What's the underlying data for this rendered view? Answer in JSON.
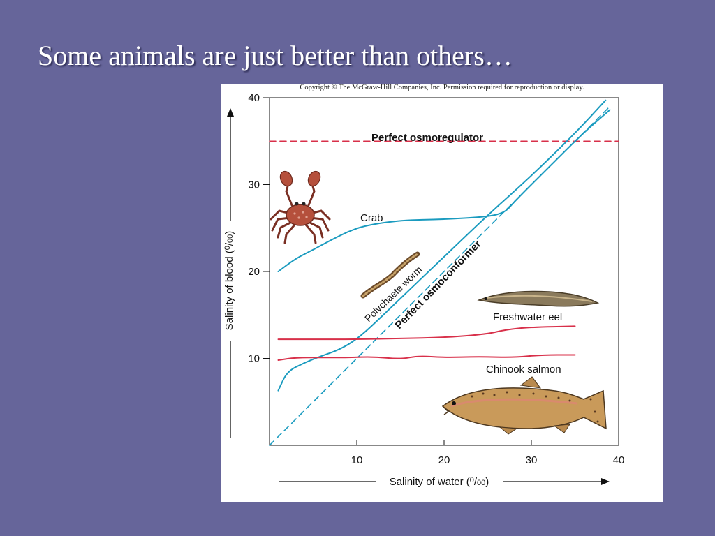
{
  "slide": {
    "title": "Some animals are just better than others…"
  },
  "figure": {
    "copyright": "Copyright © The McGraw-Hill Companies, Inc. Permission required for reproduction or display."
  },
  "chart_data": {
    "type": "line",
    "xlabel": "Salinity of water (0/00)",
    "ylabel": "Salinity of blood (0/00)",
    "xlim": [
      0,
      40
    ],
    "ylim": [
      0,
      40
    ],
    "xticks": [
      10,
      20,
      30,
      40
    ],
    "yticks": [
      10,
      20,
      30,
      40
    ],
    "grid": false,
    "series": [
      {
        "name": "Perfect osmoregulator",
        "style": "dashed",
        "color": "#d8304a",
        "x": [
          0,
          40
        ],
        "y": [
          35,
          35
        ]
      },
      {
        "name": "Perfect osmoconformer",
        "style": "dashed",
        "color": "#1a9bbf",
        "x": [
          0,
          39
        ],
        "y": [
          0,
          39
        ]
      },
      {
        "name": "Crab",
        "style": "solid",
        "color": "#1a9bbf",
        "x": [
          1,
          3,
          5,
          7,
          9,
          11,
          15,
          20,
          25,
          27,
          28,
          32,
          36,
          39
        ],
        "y": [
          20,
          21.5,
          22.5,
          23.6,
          24.6,
          25.3,
          25.9,
          26,
          26.3,
          26.8,
          28,
          32,
          36,
          38.6
        ]
      },
      {
        "name": "Polychaete worm",
        "style": "solid",
        "color": "#1a9bbf",
        "x": [
          1,
          2,
          4,
          6,
          8,
          10,
          12,
          15,
          20,
          25,
          30,
          35,
          38.5
        ],
        "y": [
          6.3,
          8.5,
          9.5,
          10.3,
          11,
          12.2,
          14,
          16.9,
          21.7,
          26.5,
          31,
          35.9,
          39.7
        ]
      },
      {
        "name": "Freshwater eel",
        "style": "solid",
        "color": "#d8304a",
        "x": [
          1,
          5,
          10,
          15,
          20,
          25,
          27,
          30,
          35
        ],
        "y": [
          12.2,
          12.2,
          12.2,
          12.3,
          12.4,
          12.8,
          13.3,
          13.6,
          13.7
        ]
      },
      {
        "name": "Chinook salmon",
        "style": "solid",
        "color": "#d8304a",
        "x": [
          1,
          3,
          6,
          9,
          12,
          15,
          17,
          20,
          24,
          28,
          31,
          35
        ],
        "y": [
          9.8,
          10.1,
          10.1,
          10.1,
          10.2,
          9.9,
          10.3,
          10.1,
          10.2,
          10.1,
          10.4,
          10.4
        ]
      }
    ],
    "annotations": {
      "regulator": "Perfect osmoregulator",
      "conformer": "Perfect osmoconformer",
      "crab": "Crab",
      "worm": "Polychaete worm",
      "eel": "Freshwater eel",
      "salmon": "Chinook salmon"
    }
  }
}
